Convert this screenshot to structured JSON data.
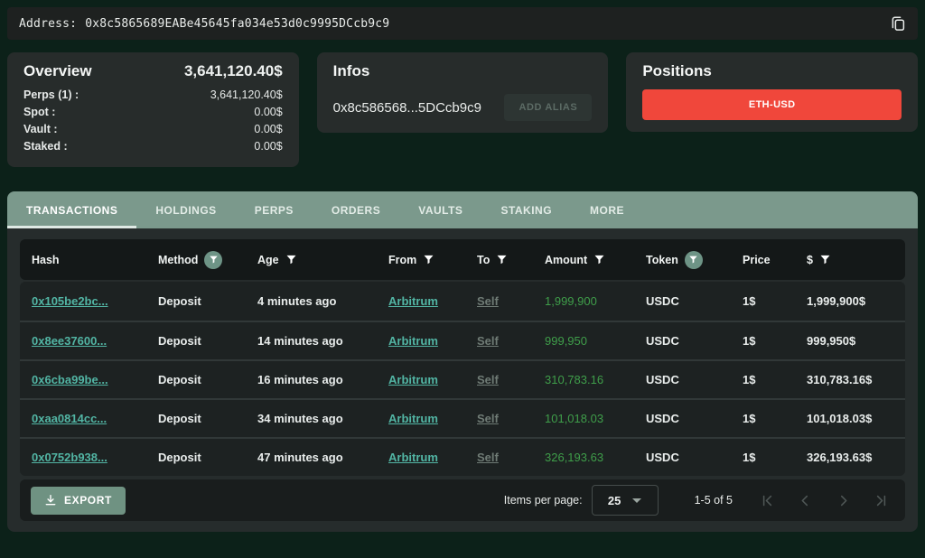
{
  "colors": {
    "accent_teal": "#52b5a4",
    "positive_green": "#3f9e4a",
    "danger_red": "#f0473b",
    "tab_bar_sage": "#7b998c",
    "export_button": "#6f9282"
  },
  "top_bar": {
    "address_label": "Address:",
    "address_value": "0x8c5865689EABe45645fa034e53d0c9995DCcb9c9"
  },
  "cards": {
    "overview": {
      "title": "Overview",
      "total": "3,641,120.40$",
      "rows": [
        {
          "label": "Perps (1) :",
          "value": "3,641,120.40$"
        },
        {
          "label": "Spot :",
          "value": "0.00$"
        },
        {
          "label": "Vault :",
          "value": "0.00$"
        },
        {
          "label": "Staked :",
          "value": "0.00$"
        }
      ]
    },
    "infos": {
      "title": "Infos",
      "address_short": "0x8c586568...5DCcb9c9",
      "add_alias_label": "ADD ALIAS"
    },
    "positions": {
      "title": "Positions",
      "position_buttons": [
        "ETH-USD"
      ]
    }
  },
  "tabs": [
    {
      "label": "TRANSACTIONS",
      "active": true
    },
    {
      "label": "HOLDINGS",
      "active": false
    },
    {
      "label": "PERPS",
      "active": false
    },
    {
      "label": "ORDERS",
      "active": false
    },
    {
      "label": "VAULTS",
      "active": false
    },
    {
      "label": "STAKING",
      "active": false
    },
    {
      "label": "MORE",
      "active": false
    }
  ],
  "table": {
    "columns": [
      {
        "label": "Hash",
        "filter": "none"
      },
      {
        "label": "Method",
        "filter": "active"
      },
      {
        "label": "Age",
        "filter": "plain"
      },
      {
        "label": "From",
        "filter": "plain"
      },
      {
        "label": "To",
        "filter": "plain"
      },
      {
        "label": "Amount",
        "filter": "plain"
      },
      {
        "label": "Token",
        "filter": "active"
      },
      {
        "label": "Price",
        "filter": "none"
      },
      {
        "label": "$",
        "filter": "plain"
      }
    ],
    "rows": [
      {
        "hash": "0x105be2bc...",
        "method": "Deposit",
        "age": "4 minutes ago",
        "from": "Arbitrum",
        "to": "Self",
        "amount": "1,999,900",
        "token": "USDC",
        "price": "1$",
        "usd_value": "1,999,900$"
      },
      {
        "hash": "0x8ee37600...",
        "method": "Deposit",
        "age": "14 minutes ago",
        "from": "Arbitrum",
        "to": "Self",
        "amount": "999,950",
        "token": "USDC",
        "price": "1$",
        "usd_value": "999,950$"
      },
      {
        "hash": "0x6cba99be...",
        "method": "Deposit",
        "age": "16 minutes ago",
        "from": "Arbitrum",
        "to": "Self",
        "amount": "310,783.16",
        "token": "USDC",
        "price": "1$",
        "usd_value": "310,783.16$"
      },
      {
        "hash": "0xaa0814cc...",
        "method": "Deposit",
        "age": "34 minutes ago",
        "from": "Arbitrum",
        "to": "Self",
        "amount": "101,018.03",
        "token": "USDC",
        "price": "1$",
        "usd_value": "101,018.03$"
      },
      {
        "hash": "0x0752b938...",
        "method": "Deposit",
        "age": "47 minutes ago",
        "from": "Arbitrum",
        "to": "Self",
        "amount": "326,193.63",
        "token": "USDC",
        "price": "1$",
        "usd_value": "326,193.63$"
      }
    ]
  },
  "footer": {
    "export_label": "EXPORT",
    "items_per_page_label": "Items per page:",
    "items_per_page_value": "25",
    "range_label": "1-5 of 5"
  }
}
